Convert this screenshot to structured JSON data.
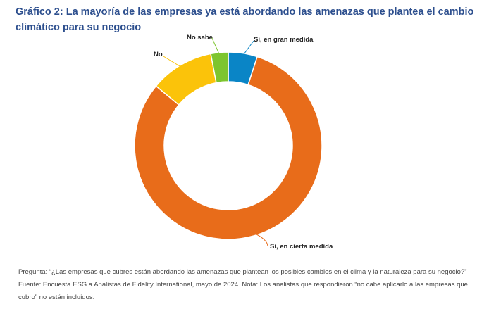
{
  "chart_data": {
    "type": "pie",
    "style": "donut",
    "title": "Gráfico 2: La mayoría de las empresas ya está abordando las amenazas que plantea el cambio climático para su negocio",
    "categories": [
      "Sí, en gran medida",
      "Sí, en cierta medida",
      "No",
      "No sabe"
    ],
    "values": [
      5,
      81,
      11,
      3
    ],
    "colors": [
      "#0a85c6",
      "#e86c1a",
      "#fbc30a",
      "#7dc52e"
    ]
  },
  "footnote": "Pregunta: “¿Las empresas que cubres están abordando las amenazas que plantean los posibles cambios en el clima y la naturaleza para su negocio?” Fuente: Encuesta ESG a Analistas de Fidelity International, mayo de 2024. Nota: Los analistas que respondieron “no cabe aplicarlo a las empresas que cubro” no están incluidos."
}
